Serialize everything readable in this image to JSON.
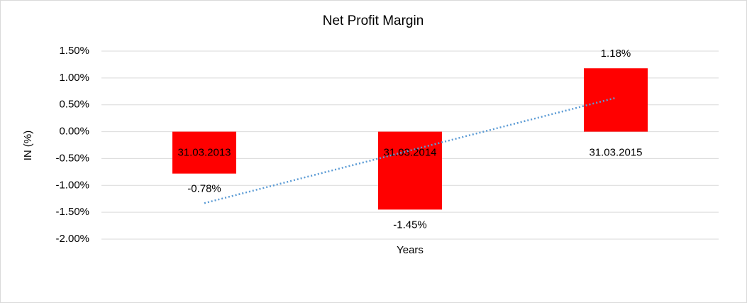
{
  "chart_data": {
    "type": "bar",
    "title": "Net Profit Margin",
    "x_label": "Years",
    "y_label": "IN (%)",
    "categories": [
      "31.03.2013",
      "31.03.2014",
      "31.03.2015"
    ],
    "values": [
      -0.78,
      -1.45,
      1.18
    ],
    "value_labels": [
      "-0.78%",
      "-1.45%",
      "1.18%"
    ],
    "color": "#ff0000",
    "ylim": [
      -2,
      1.5
    ],
    "yticks": [
      {
        "value": -2,
        "label": "-2.00%"
      },
      {
        "value": -1.5,
        "label": "-1.50%"
      },
      {
        "value": -1,
        "label": "-1.00%"
      },
      {
        "value": -0.5,
        "label": "-0.50%"
      },
      {
        "value": 0,
        "label": "0.00%"
      },
      {
        "value": 0.5,
        "label": "0.50%"
      },
      {
        "value": 1,
        "label": "1.00%"
      },
      {
        "value": 1.5,
        "label": "1.50%"
      }
    ],
    "grid": true,
    "trendline": {
      "type": "linear",
      "color": "#5b9bd5"
    }
  }
}
